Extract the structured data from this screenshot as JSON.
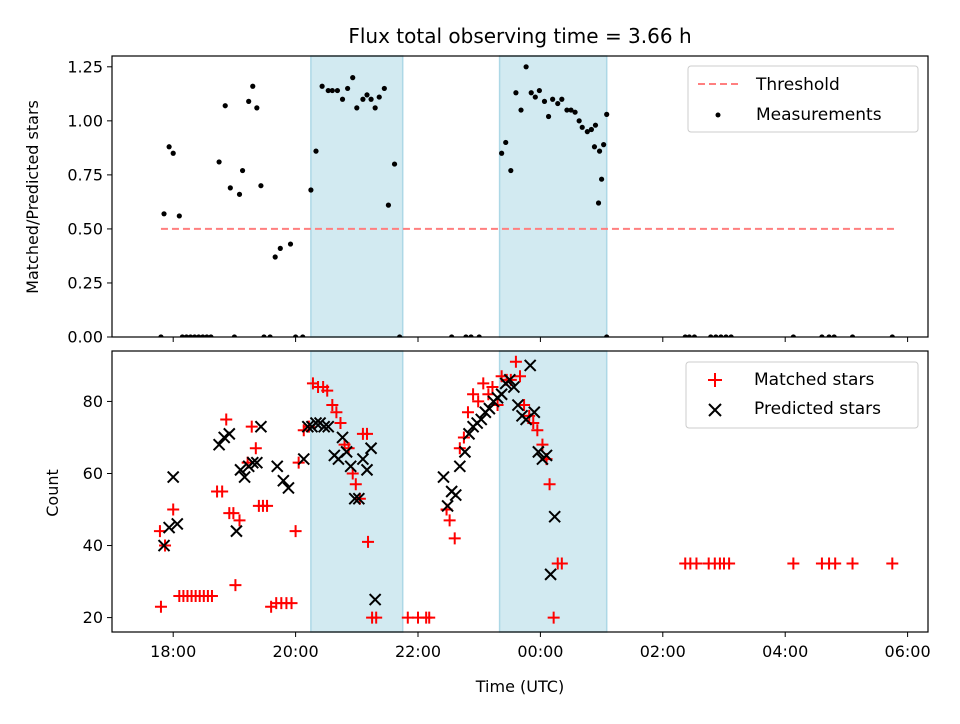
{
  "title": "Flux total observing time = 3.66 h",
  "colors": {
    "threshold": "#ff7f7f",
    "measurement": "#000000",
    "matched": "#ff0000",
    "predicted": "#000000",
    "band": "#add8e6"
  },
  "chart_data": [
    {
      "type": "scatter",
      "ylabel": "Matched/Predicted stars",
      "ylim": [
        0,
        1.3
      ],
      "yticks": [
        "0.00",
        "0.25",
        "0.50",
        "0.75",
        "1.00",
        "1.25"
      ],
      "xlim": [
        "2023-01-01T17:00",
        "2023-01-02T06:20"
      ],
      "xticks": [
        "18:00",
        "20:00",
        "22:00",
        "00:00",
        "02:00",
        "04:00",
        "06:00"
      ],
      "grid": false,
      "legend_position": "top-right",
      "observing_windows": [
        [
          "20:15",
          "21:45"
        ],
        [
          "23:20",
          "01:05"
        ]
      ],
      "threshold": {
        "name": "Threshold",
        "value": 0.5,
        "x_range": [
          "17:48",
          "05:48"
        ]
      },
      "series": [
        {
          "name": "Measurements",
          "points": [
            [
              "17:48",
              0
            ],
            [
              "17:51",
              0.57
            ],
            [
              "17:56",
              0.88
            ],
            [
              "18:00",
              0.85
            ],
            [
              "18:06",
              0.56
            ],
            [
              "18:09",
              0
            ],
            [
              "18:13",
              0
            ],
            [
              "18:17",
              0
            ],
            [
              "18:21",
              0
            ],
            [
              "18:25",
              0
            ],
            [
              "18:29",
              0
            ],
            [
              "18:33",
              0
            ],
            [
              "18:37",
              0
            ],
            [
              "18:45",
              0.81
            ],
            [
              "18:51",
              1.07
            ],
            [
              "18:56",
              0.69
            ],
            [
              "19:00",
              0
            ],
            [
              "19:05",
              0.66
            ],
            [
              "19:08",
              0.77
            ],
            [
              "19:14",
              1.09
            ],
            [
              "19:18",
              1.16
            ],
            [
              "19:22",
              1.06
            ],
            [
              "19:26",
              0.7
            ],
            [
              "19:29",
              0
            ],
            [
              "19:35",
              0
            ],
            [
              "19:40",
              0.37
            ],
            [
              "19:45",
              0.41
            ],
            [
              "19:55",
              0.43
            ],
            [
              "20:00",
              0
            ],
            [
              "20:07",
              0
            ],
            [
              "20:15",
              0.68
            ],
            [
              "20:20",
              0.86
            ],
            [
              "20:26",
              1.16
            ],
            [
              "20:32",
              1.14
            ],
            [
              "20:36",
              1.14
            ],
            [
              "20:41",
              1.14
            ],
            [
              "20:46",
              1.1
            ],
            [
              "20:51",
              1.15
            ],
            [
              "20:56",
              1.2
            ],
            [
              "21:00",
              1.06
            ],
            [
              "21:06",
              1.1
            ],
            [
              "21:10",
              1.12
            ],
            [
              "21:14",
              1.1
            ],
            [
              "21:18",
              1.06
            ],
            [
              "21:22",
              1.11
            ],
            [
              "21:27",
              1.15
            ],
            [
              "21:31",
              0.61
            ],
            [
              "21:37",
              0.8
            ],
            [
              "21:42",
              0
            ],
            [
              "22:33",
              0
            ],
            [
              "22:47",
              0
            ],
            [
              "22:52",
              0
            ],
            [
              "23:00",
              0
            ],
            [
              "23:22",
              0.85
            ],
            [
              "23:26",
              0.9
            ],
            [
              "23:31",
              0.77
            ],
            [
              "23:36",
              1.13
            ],
            [
              "23:41",
              1.05
            ],
            [
              "23:46",
              1.25
            ],
            [
              "23:51",
              1.13
            ],
            [
              "23:55",
              1.11
            ],
            [
              "23:59",
              1.14
            ],
            [
              "00:04",
              1.09
            ],
            [
              "00:08",
              1.02
            ],
            [
              "00:12",
              1.1
            ],
            [
              "00:17",
              1.08
            ],
            [
              "00:21",
              1.1
            ],
            [
              "00:26",
              1.05
            ],
            [
              "00:30",
              1.05
            ],
            [
              "00:34",
              1.04
            ],
            [
              "00:38",
              1.0
            ],
            [
              "00:41",
              0.97
            ],
            [
              "00:46",
              0.95
            ],
            [
              "00:50",
              0.96
            ],
            [
              "00:54",
              0.98
            ],
            [
              "00:58",
              0.86
            ],
            [
              "01:02",
              0.89
            ],
            [
              "01:05",
              1.03
            ],
            [
              "00:53",
              0.88
            ],
            [
              "00:57",
              0.62
            ],
            [
              "01:00",
              0.73
            ],
            [
              "01:05",
              0
            ],
            [
              "02:22",
              0
            ],
            [
              "02:26",
              0
            ],
            [
              "02:31",
              0
            ],
            [
              "02:47",
              0
            ],
            [
              "02:52",
              0
            ],
            [
              "02:57",
              0
            ],
            [
              "03:02",
              0
            ],
            [
              "03:07",
              0
            ],
            [
              "04:08",
              0
            ],
            [
              "04:36",
              0
            ],
            [
              "04:43",
              0
            ],
            [
              "04:48",
              0
            ],
            [
              "05:06",
              0
            ],
            [
              "05:45",
              0
            ]
          ]
        }
      ]
    },
    {
      "type": "scatter",
      "ylabel": "Count",
      "xlabel": "Time (UTC)",
      "ylim": [
        16,
        94
      ],
      "yticks": [
        "20",
        "40",
        "60",
        "80"
      ],
      "xlim": [
        "2023-01-01T17:00",
        "2023-01-02T06:20"
      ],
      "xticks": [
        "18:00",
        "20:00",
        "22:00",
        "00:00",
        "02:00",
        "04:00",
        "06:00"
      ],
      "grid": false,
      "legend_position": "top-right",
      "observing_windows": [
        [
          "20:15",
          "21:45"
        ],
        [
          "23:20",
          "01:05"
        ]
      ],
      "series": [
        {
          "name": "Matched stars",
          "marker": "plus",
          "points": [
            [
              "17:47",
              44
            ],
            [
              "17:48",
              23
            ],
            [
              "17:52",
              40
            ],
            [
              "18:00",
              50
            ],
            [
              "18:06",
              26
            ],
            [
              "18:10",
              26
            ],
            [
              "18:14",
              26
            ],
            [
              "18:18",
              26
            ],
            [
              "18:22",
              26
            ],
            [
              "18:26",
              26
            ],
            [
              "18:30",
              26
            ],
            [
              "18:34",
              26
            ],
            [
              "18:38",
              26
            ],
            [
              "18:43",
              55
            ],
            [
              "18:48",
              55
            ],
            [
              "18:52",
              75
            ],
            [
              "18:55",
              49
            ],
            [
              "18:59",
              49
            ],
            [
              "19:01",
              29
            ],
            [
              "19:05",
              47
            ],
            [
              "19:13",
              63
            ],
            [
              "19:17",
              73
            ],
            [
              "19:21",
              67
            ],
            [
              "19:24",
              51
            ],
            [
              "19:28",
              51
            ],
            [
              "19:32",
              51
            ],
            [
              "19:36",
              23
            ],
            [
              "19:41",
              24
            ],
            [
              "19:46",
              24
            ],
            [
              "19:51",
              24
            ],
            [
              "19:56",
              24
            ],
            [
              "20:00",
              44
            ],
            [
              "20:03",
              63
            ],
            [
              "20:08",
              72
            ],
            [
              "20:13",
              73
            ],
            [
              "20:17",
              85
            ],
            [
              "20:22",
              84
            ],
            [
              "20:27",
              84
            ],
            [
              "20:31",
              83
            ],
            [
              "20:36",
              79
            ],
            [
              "20:40",
              77
            ],
            [
              "20:44",
              74
            ],
            [
              "20:48",
              68
            ],
            [
              "20:52",
              67
            ],
            [
              "20:56",
              60
            ],
            [
              "20:59",
              57
            ],
            [
              "21:03",
              53
            ],
            [
              "21:06",
              71
            ],
            [
              "21:10",
              71
            ],
            [
              "21:11",
              41
            ],
            [
              "21:15",
              20
            ],
            [
              "21:19",
              20
            ],
            [
              "21:50",
              20
            ],
            [
              "22:00",
              20
            ],
            [
              "22:08",
              20
            ],
            [
              "22:11",
              20
            ],
            [
              "22:28",
              50
            ],
            [
              "22:31",
              47
            ],
            [
              "22:36",
              42
            ],
            [
              "22:41",
              67
            ],
            [
              "22:45",
              70
            ],
            [
              "22:49",
              77
            ],
            [
              "22:54",
              82
            ],
            [
              "22:59",
              80
            ],
            [
              "23:04",
              85
            ],
            [
              "23:09",
              82
            ],
            [
              "23:13",
              84
            ],
            [
              "23:18",
              79
            ],
            [
              "23:22",
              87
            ],
            [
              "23:27",
              86
            ],
            [
              "23:31",
              86
            ],
            [
              "23:36",
              91
            ],
            [
              "23:40",
              87
            ],
            [
              "23:44",
              79
            ],
            [
              "23:49",
              76
            ],
            [
              "23:53",
              74
            ],
            [
              "23:57",
              72
            ],
            [
              "00:02",
              68
            ],
            [
              "00:06",
              64
            ],
            [
              "00:09",
              57
            ],
            [
              "00:13",
              20
            ],
            [
              "00:17",
              35
            ],
            [
              "00:21",
              35
            ],
            [
              "02:22",
              35
            ],
            [
              "02:27",
              35
            ],
            [
              "02:33",
              35
            ],
            [
              "02:45",
              35
            ],
            [
              "02:51",
              35
            ],
            [
              "02:56",
              35
            ],
            [
              "03:00",
              35
            ],
            [
              "03:05",
              35
            ],
            [
              "04:08",
              35
            ],
            [
              "04:36",
              35
            ],
            [
              "04:43",
              35
            ],
            [
              "04:49",
              35
            ],
            [
              "05:06",
              35
            ],
            [
              "05:45",
              35
            ]
          ]
        },
        {
          "name": "Predicted stars",
          "marker": "x",
          "points": [
            [
              "17:51",
              40
            ],
            [
              "17:56",
              45
            ],
            [
              "18:00",
              59
            ],
            [
              "18:04",
              46
            ],
            [
              "18:45",
              68
            ],
            [
              "18:50",
              70
            ],
            [
              "18:55",
              71
            ],
            [
              "19:02",
              44
            ],
            [
              "19:06",
              61
            ],
            [
              "19:10",
              59
            ],
            [
              "19:14",
              62
            ],
            [
              "19:18",
              63
            ],
            [
              "19:22",
              63
            ],
            [
              "19:26",
              73
            ],
            [
              "19:42",
              62
            ],
            [
              "19:48",
              58
            ],
            [
              "19:53",
              56
            ],
            [
              "20:08",
              64
            ],
            [
              "20:12",
              73
            ],
            [
              "20:16",
              73
            ],
            [
              "20:20",
              74
            ],
            [
              "20:24",
              74
            ],
            [
              "20:28",
              73
            ],
            [
              "20:32",
              73
            ],
            [
              "20:38",
              65
            ],
            [
              "20:42",
              64
            ],
            [
              "20:46",
              70
            ],
            [
              "20:50",
              66
            ],
            [
              "20:54",
              62
            ],
            [
              "20:58",
              53
            ],
            [
              "21:02",
              53
            ],
            [
              "21:06",
              64
            ],
            [
              "21:10",
              61
            ],
            [
              "21:14",
              67
            ],
            [
              "21:18",
              25
            ],
            [
              "22:25",
              59
            ],
            [
              "22:29",
              51
            ],
            [
              "22:33",
              55
            ],
            [
              "22:37",
              54
            ],
            [
              "22:41",
              62
            ],
            [
              "22:46",
              66
            ],
            [
              "22:50",
              71
            ],
            [
              "22:54",
              73
            ],
            [
              "22:58",
              74
            ],
            [
              "23:02",
              75
            ],
            [
              "23:06",
              77
            ],
            [
              "23:10",
              78
            ],
            [
              "23:14",
              80
            ],
            [
              "23:18",
              81
            ],
            [
              "23:22",
              82
            ],
            [
              "23:26",
              85
            ],
            [
              "23:30",
              86
            ],
            [
              "23:34",
              84
            ],
            [
              "23:38",
              79
            ],
            [
              "23:42",
              76
            ],
            [
              "23:46",
              75
            ],
            [
              "23:50",
              90
            ],
            [
              "23:54",
              77
            ],
            [
              "23:58",
              66
            ],
            [
              "00:02",
              64
            ],
            [
              "00:06",
              65
            ],
            [
              "00:10",
              32
            ],
            [
              "00:14",
              48
            ]
          ]
        }
      ]
    }
  ]
}
